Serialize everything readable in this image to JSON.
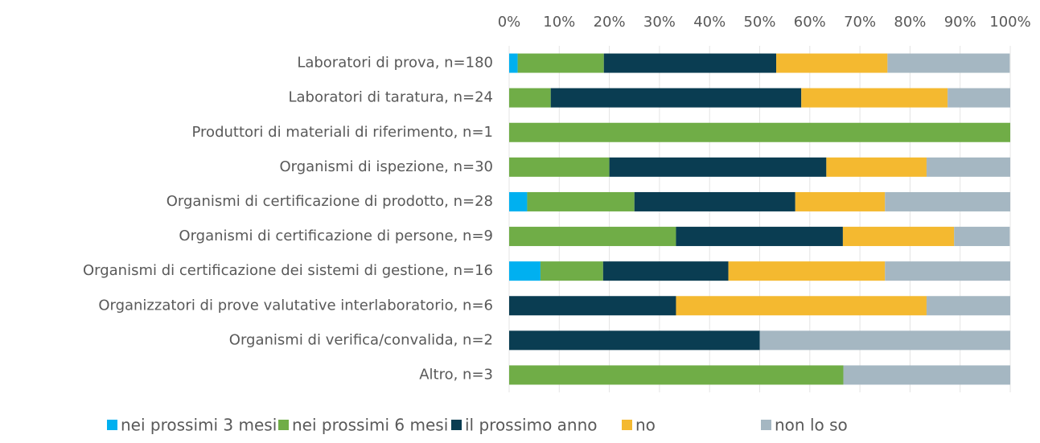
{
  "chart_data": {
    "type": "stacked_bar_horizontal",
    "categories": [
      "Laboratori di prova, n=180",
      "Laboratori di taratura, n=24",
      "Produttori di materiali di riferimento, n=1",
      "Organismi di ispezione, n=30",
      "Organismi di certificazione di prodotto, n=28",
      "Organismi di certificazione di persone, n=9",
      "Organismi di certificazione dei sistemi di gestione, n=16",
      "Organizzatori di prove valutative interlaboratorio, n=6",
      "Organismi di verifica/convalida, n=2",
      "Altro, n=3"
    ],
    "series": [
      {
        "name": "nei prossimi 3 mesi",
        "color": "#00b0f0",
        "values": [
          1.7,
          0,
          0,
          0,
          3.6,
          0,
          6.25,
          0,
          0,
          0
        ]
      },
      {
        "name": "nei prossimi 6 mesi",
        "color": "#70ad47",
        "values": [
          17.2,
          8.3,
          100,
          20,
          21.4,
          33.3,
          12.5,
          0,
          0,
          66.7
        ]
      },
      {
        "name": "il prossimo anno",
        "color": "#0a3d52",
        "values": [
          34.4,
          50,
          0,
          43.3,
          32.1,
          33.3,
          25,
          33.3,
          50,
          0
        ]
      },
      {
        "name": "no",
        "color": "#f4b930",
        "values": [
          22.2,
          29.2,
          0,
          20,
          17.9,
          22.2,
          31.25,
          50,
          0,
          0
        ]
      },
      {
        "name": "non lo so",
        "color": "#a5b7c2",
        "values": [
          24.4,
          12.5,
          0,
          16.7,
          25,
          11.1,
          25,
          16.7,
          50,
          33.3
        ]
      }
    ],
    "xlim": [
      0,
      100
    ],
    "xticks": [
      {
        "value": 0,
        "label": "0%"
      },
      {
        "value": 10,
        "label": "10%"
      },
      {
        "value": 20,
        "label": "20%"
      },
      {
        "value": 30,
        "label": "30%"
      },
      {
        "value": 40,
        "label": "40%"
      },
      {
        "value": 50,
        "label": "50%"
      },
      {
        "value": 60,
        "label": "60%"
      },
      {
        "value": 70,
        "label": "70%"
      },
      {
        "value": 80,
        "label": "80%"
      },
      {
        "value": 90,
        "label": "90%"
      },
      {
        "value": 100,
        "label": "100%"
      }
    ],
    "grid": true,
    "legend": "bottom"
  }
}
